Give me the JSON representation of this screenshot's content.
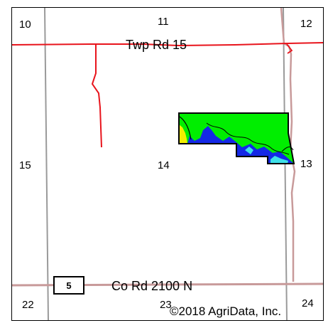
{
  "sections": {
    "s10": "10",
    "s11": "11",
    "s12": "12",
    "s15": "15",
    "s14": "14",
    "s13": "13",
    "s22": "22",
    "s23": "23",
    "s24": "24"
  },
  "roads": {
    "north": "Twp Rd 15",
    "south": "Co Rd 2100 N"
  },
  "route_shield": "5",
  "copyright": "©2018 AgriData, Inc.",
  "colors": {
    "road_red": "#e8141c",
    "section_line": "#9a9a9a",
    "road_pink": "#c89a9a",
    "field_green": "#00ee00",
    "field_blue": "#1428e6",
    "field_cyan": "#3ee0e8",
    "field_yellow": "#f2ee00"
  }
}
